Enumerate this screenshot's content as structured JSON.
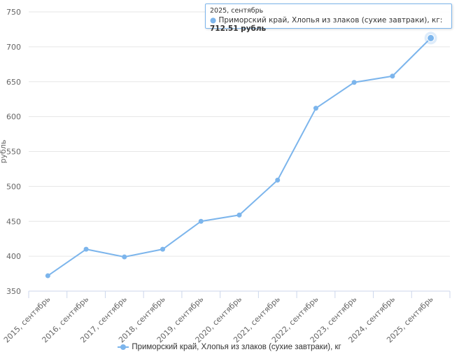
{
  "chart_data": {
    "type": "line",
    "categories": [
      "2015, сентябрь",
      "2016, сентябрь",
      "2017, сентябрь",
      "2018, сентябрь",
      "2019, сентябрь",
      "2020, сентябрь",
      "2021, сентябрь",
      "2022, сентябрь",
      "2023, сентябрь",
      "2024, сентябрь",
      "2025, сентябрь"
    ],
    "series": [
      {
        "name": "Приморский край, Хлопья из злаков (сухие завтраки), кг",
        "values": [
          372,
          410,
          399,
          410,
          450,
          459,
          509,
          612,
          649,
          658,
          712.51
        ],
        "color": "#7cb5ec"
      }
    ],
    "ylabel": "рубль",
    "ylim": [
      350,
      750
    ],
    "yticks": [
      350,
      400,
      450,
      500,
      550,
      600,
      650,
      700,
      750
    ],
    "grid": true,
    "legend": "bottom"
  },
  "tooltip": {
    "date": "2025, сентябрь",
    "series": "Приморский край, Хлопья из злаков (сухие завтраки), кг: ",
    "value": "712.51 рубль"
  }
}
